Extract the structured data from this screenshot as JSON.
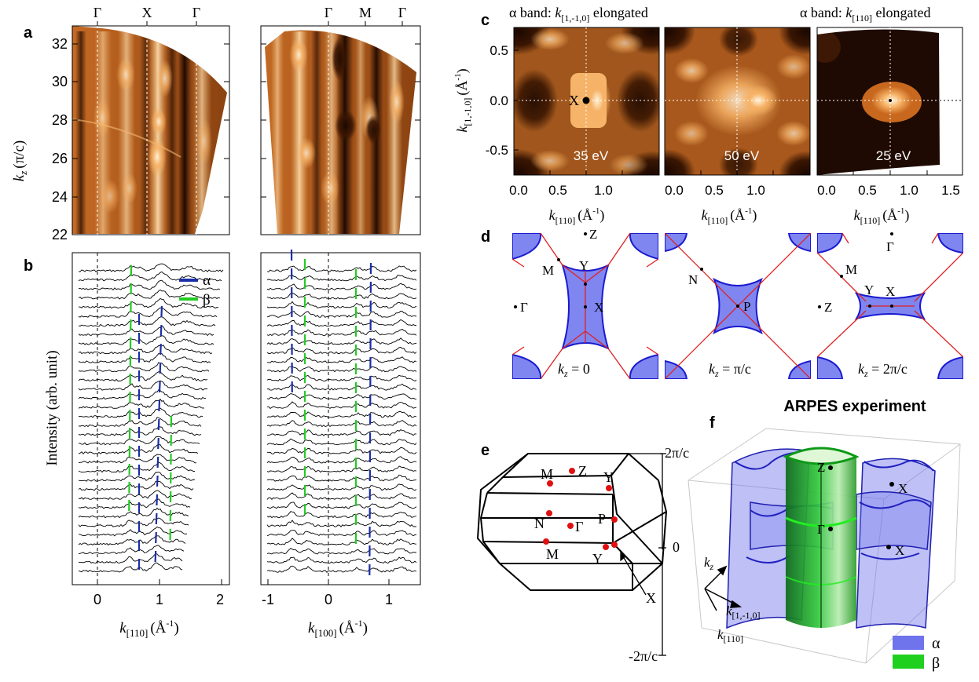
{
  "panel_labels": {
    "a": "a",
    "b": "b",
    "c": "c",
    "d": "d",
    "e": "e",
    "f": "f"
  },
  "panel_a": {
    "left_top_ticks": [
      "Γ",
      "X",
      "Γ"
    ],
    "right_top_ticks": [
      "Γ",
      "M",
      "Γ"
    ],
    "y_axis_label": "k",
    "y_axis_label_sub": "z",
    "y_axis_label_units": "(π/c)",
    "y_ticks": [
      "32",
      "30",
      "28",
      "26",
      "24",
      "22"
    ]
  },
  "panel_b": {
    "y_axis_label": "Intensity (arb. unit)",
    "legend": [
      {
        "symbol": "α",
        "color": "#1a2ea8"
      },
      {
        "symbol": "β",
        "color": "#22cc22"
      }
    ],
    "left_x_ticks": [
      "0",
      "1",
      "2"
    ],
    "right_x_ticks": [
      "-1",
      "0",
      "1"
    ],
    "left_x_label": "k",
    "left_x_label_sub": "[110]",
    "left_x_label_units": "(Å",
    "left_x_label_exp": "-1",
    "right_x_label": "k",
    "right_x_label_sub": "[100]",
    "right_x_label_units": "(Å",
    "right_x_label_exp": "-1"
  },
  "panel_c": {
    "title_left_a": "α band: ",
    "title_left_k": "k",
    "title_left_sub": "[1,-1,0]",
    "title_left_b": " elongated",
    "title_right_a": "α band: ",
    "title_right_k": "k",
    "title_right_sub": "[110]",
    "title_right_b": " elongated",
    "energies": [
      "35 eV",
      "50 eV",
      "25 eV"
    ],
    "point_x": "X",
    "y_ticks": [
      "0.5",
      "0.0",
      "-0.5"
    ],
    "y_axis_label": "k",
    "y_axis_label_sub": "[1,-1,0]",
    "y_axis_label_units": "(Å",
    "y_axis_label_exp": "-1",
    "x_ticks_1": [
      "0.0",
      "0.5",
      "1.0"
    ],
    "x_ticks_2": [
      "0.0",
      "0.5",
      "1.0"
    ],
    "x_ticks_3": [
      "0.0",
      "0.5",
      "1.0",
      "1.5"
    ],
    "x_label": "k",
    "x_label_sub": "[110]",
    "x_label_units": "(Å",
    "x_label_exp": "-1"
  },
  "panel_d": {
    "left": {
      "points": [
        "Z",
        "M",
        "Y",
        "X",
        "Γ"
      ],
      "caption_k": "k",
      "caption_sub": "z",
      "caption_eq": " = 0"
    },
    "middle": {
      "points": [
        "N",
        "P"
      ],
      "caption_k": "k",
      "caption_sub": "z",
      "caption_eq": " = π/c"
    },
    "right": {
      "points": [
        "Γ",
        "M",
        "Y",
        "X",
        "Z"
      ],
      "caption_k": "k",
      "caption_sub": "z",
      "caption_eq": " = 2π/c"
    },
    "alpha_color": "#7f86f0",
    "edge_color": "#1a1ad0",
    "line_color": "#e02020"
  },
  "panel_e": {
    "points": [
      "M",
      "Z",
      "Y",
      "N",
      "Γ",
      "P",
      "M",
      "Y",
      "X"
    ],
    "kz_labels": [
      "2π/c",
      "0",
      "-2π/c"
    ],
    "point_color": "#e01010"
  },
  "panel_f": {
    "title": "ARPES experiment",
    "points": [
      "Z",
      "X",
      "Γ",
      "X"
    ],
    "axis_kz": "k",
    "axis_kz_sub": "z",
    "axis_k1": "k",
    "axis_k1_sub": "[1,-1,0]",
    "axis_k2": "k",
    "axis_k2_sub": "[110]",
    "legend": [
      {
        "symbol": "α",
        "color": "#6f73ec"
      },
      {
        "symbol": "β",
        "color": "#1fd01f"
      }
    ]
  }
}
